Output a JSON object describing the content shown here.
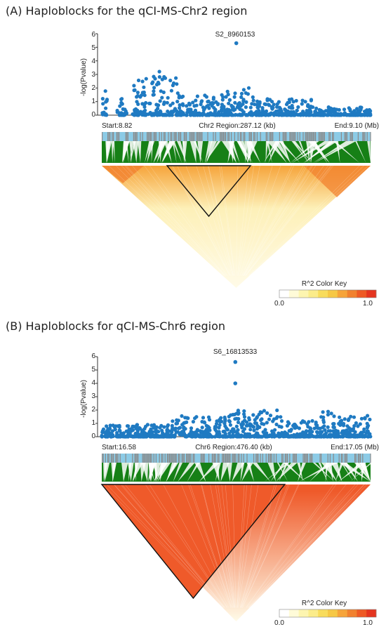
{
  "colors": {
    "point": "#1f7ac2",
    "tick_dark": "#8a8a8a",
    "tick_light": "#8ccbe6",
    "fan": "#168016",
    "ld_high": "#ef5a2a",
    "ld_low": "#fffbe8"
  },
  "color_key": {
    "title": "R^2 Color Key",
    "min_label": "0.0",
    "max_label": "1.0",
    "stops": [
      "#ffffff",
      "#fffbd8",
      "#fdf5b0",
      "#fbec8a",
      "#f8dc5c",
      "#f6c845",
      "#f6a43a",
      "#f1812f",
      "#ee5a25",
      "#e53520"
    ]
  },
  "panels": [
    {
      "title": "(A) Haploblocks for the qCI-MS-Chr2 region",
      "ylabel": "-log(Pvalue)",
      "yticks": [
        "0",
        "1",
        "2",
        "3",
        "4",
        "5",
        "6"
      ],
      "peak_label": "S2_8960153",
      "start_label": "Start:8.82",
      "region_label": "Chr2 Region:287.12 (kb)",
      "end_label": "End:9.10 (Mb)"
    },
    {
      "title": "(B) Haploblocks for qCI-MS-Chr6 region",
      "ylabel": "-log(Pvalue)",
      "yticks": [
        "0",
        "1",
        "2",
        "3",
        "4",
        "5",
        "6"
      ],
      "peak_label": "S6_16813533",
      "start_label": "Start:16.58",
      "region_label": "Chr6 Region:476.40 (kb)",
      "end_label": "End:17.05 (Mb)"
    }
  ],
  "chart_data": [
    {
      "type": "scatter",
      "title": "(A) Haploblocks for the qCI-MS-Chr2 region",
      "ylabel": "-log(Pvalue)",
      "ylim": [
        0,
        6
      ],
      "x_unit": "Mb",
      "xlim": [
        8.82,
        9.1
      ],
      "peak": {
        "name": "S2_8960153",
        "x": 8.960153,
        "y": 5.3
      },
      "clusters": [
        {
          "x_from": 8.82,
          "x_to": 8.826,
          "y_max": 1.8
        },
        {
          "x_from": 8.836,
          "x_to": 8.846,
          "y_max": 1.4
        },
        {
          "x_from": 8.852,
          "x_to": 8.87,
          "y_max": 2.7
        },
        {
          "x_from": 8.87,
          "x_to": 8.884,
          "y_max": 3.3
        },
        {
          "x_from": 8.884,
          "x_to": 8.905,
          "y_max": 2.9
        },
        {
          "x_from": 8.905,
          "x_to": 8.95,
          "y_max": 1.5
        },
        {
          "x_from": 8.95,
          "x_to": 8.98,
          "y_max": 2.3
        },
        {
          "x_from": 8.98,
          "x_to": 9.04,
          "y_max": 1.3
        },
        {
          "x_from": 9.04,
          "x_to": 9.1,
          "y_max": 0.6
        }
      ],
      "haploblock": {
        "x_from": 8.888,
        "x_to": 8.975
      }
    },
    {
      "type": "scatter",
      "title": "(B) Haploblocks for qCI-MS-Chr6 region",
      "ylabel": "-log(Pvalue)",
      "ylim": [
        0,
        6
      ],
      "x_unit": "Mb",
      "xlim": [
        16.58,
        17.05
      ],
      "peak": {
        "name": "S6_16813533",
        "x": 16.813533,
        "y": 5.6
      },
      "secondary": [
        {
          "x": 16.8135,
          "y": 4.0
        }
      ],
      "clusters": [
        {
          "x_from": 16.58,
          "x_to": 16.7,
          "y_max": 0.9
        },
        {
          "x_from": 16.7,
          "x_to": 16.8,
          "y_max": 1.6
        },
        {
          "x_from": 16.8,
          "x_to": 16.9,
          "y_max": 2.0
        },
        {
          "x_from": 16.9,
          "x_to": 16.96,
          "y_max": 1.2
        },
        {
          "x_from": 16.96,
          "x_to": 16.99,
          "y_max": 1.9
        },
        {
          "x_from": 16.99,
          "x_to": 17.05,
          "y_max": 1.6
        }
      ],
      "haploblock": {
        "x_from": 16.58,
        "x_to": 16.9
      }
    }
  ]
}
